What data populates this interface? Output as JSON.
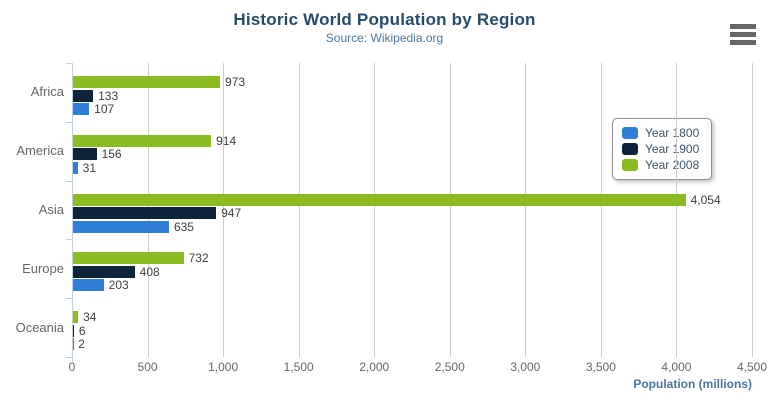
{
  "header": {
    "title": "Historic World Population by Region",
    "subtitle": "Source: Wikipedia.org",
    "menu_icon": "hamburger-icon"
  },
  "colors": {
    "title_text": "#274b6d",
    "subtitle_text": "#4d759e",
    "axis_label_text": "#666666",
    "data_label_text": "#404040",
    "grid_line": "#cccccc",
    "axis_line": "#c0d0e0",
    "legend_border": "#909090",
    "menu_icon": "#666666"
  },
  "chart_data": {
    "type": "bar",
    "title": "Historic World Population by Region",
    "subtitle": "Source: Wikipedia.org",
    "categories": [
      "Africa",
      "America",
      "Asia",
      "Europe",
      "Oceania"
    ],
    "series": [
      {
        "name": "Year 1800",
        "color": "#2f7ed8",
        "values": [
          107,
          31,
          635,
          203,
          2
        ]
      },
      {
        "name": "Year 1900",
        "color": "#0d233a",
        "values": [
          133,
          156,
          947,
          408,
          6
        ]
      },
      {
        "name": "Year 2008",
        "color": "#8bbc21",
        "values": [
          973,
          914,
          4054,
          732,
          34
        ]
      }
    ],
    "series_draw_order_top_to_bottom": [
      "Year 2008",
      "Year 1900",
      "Year 1800"
    ],
    "xlabel": "Population (millions)",
    "ylabel": "",
    "xlim": [
      0,
      4500
    ],
    "tick_interval": 500,
    "tick_labels": [
      "0",
      "500",
      "1,000",
      "1,500",
      "2,000",
      "2,500",
      "3,000",
      "3,500",
      "4,000",
      "4,500"
    ],
    "grid": true,
    "legend_position": "right",
    "legend_entries": [
      "Year 1800",
      "Year 1900",
      "Year 2008"
    ]
  }
}
